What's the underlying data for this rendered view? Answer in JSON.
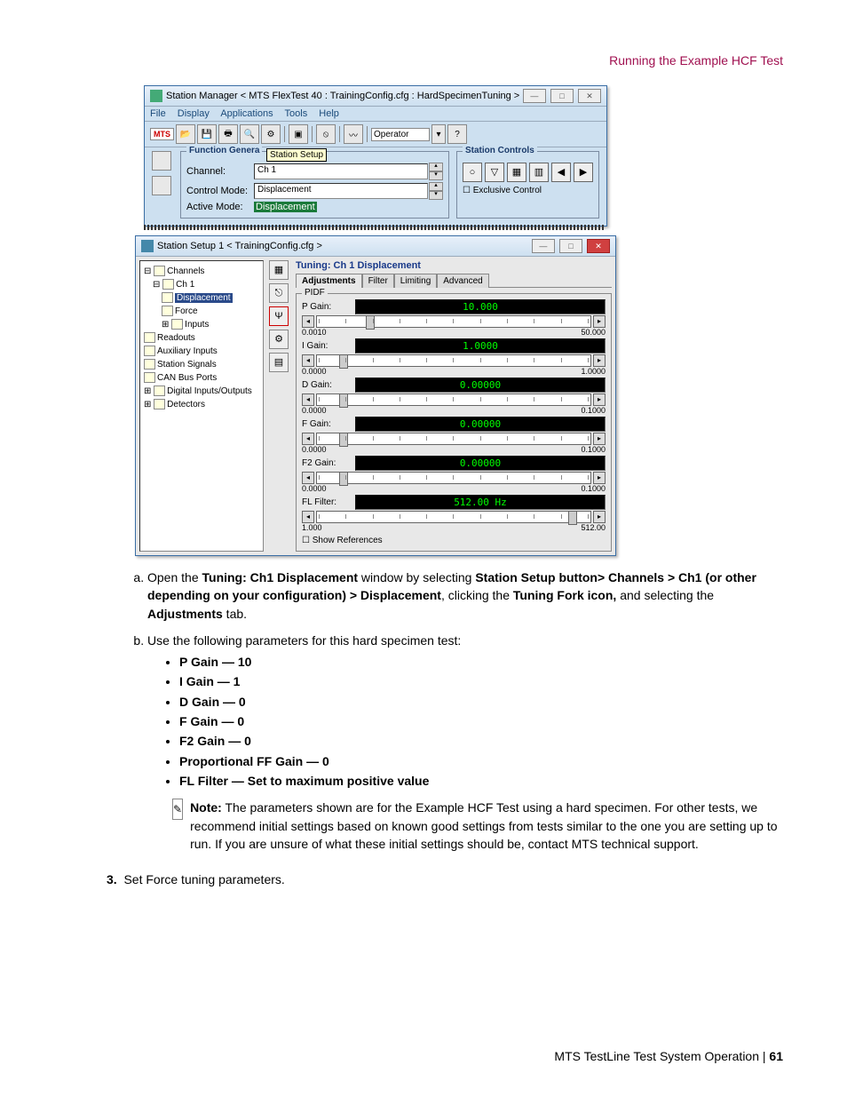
{
  "header": "Running the Example HCF Test",
  "window1": {
    "title": "Station Manager < MTS FlexTest 40 : TrainingConfig.cfg : HardSpecimenTuning >",
    "menu": [
      "File",
      "Display",
      "Applications",
      "Tools",
      "Help"
    ],
    "operator": "Operator",
    "funcgen": {
      "title": "Function Genera",
      "tooltip": "Station Setup",
      "channel_label": "Channel:",
      "channel": "Ch 1",
      "controlmode_label": "Control Mode:",
      "controlmode": "Displacement",
      "activemode_label": "Active Mode:",
      "activemode": "Displacement"
    },
    "stationctrl": {
      "title": "Station Controls",
      "exclusive": "Exclusive Control"
    }
  },
  "window2": {
    "title": "Station Setup 1 < TrainingConfig.cfg >",
    "tree": {
      "channels": "Channels",
      "ch1": "Ch 1",
      "displacement": "Displacement",
      "force": "Force",
      "inputs": "Inputs",
      "readouts": "Readouts",
      "aux": "Auxiliary Inputs",
      "station": "Station Signals",
      "can": "CAN Bus Ports",
      "digital": "Digital Inputs/Outputs",
      "detectors": "Detectors"
    },
    "tuning": {
      "title": "Tuning:  Ch 1 Displacement",
      "tabs": [
        "Adjustments",
        "Filter",
        "Limiting",
        "Advanced"
      ],
      "group": "PIDF",
      "gains": [
        {
          "name": "P Gain:",
          "value": "10.000",
          "min": "0.0010",
          "max": "50.000",
          "thumb": 18
        },
        {
          "name": "I Gain:",
          "value": "1.0000",
          "min": "0.0000",
          "max": "1.0000",
          "thumb": 8
        },
        {
          "name": "D Gain:",
          "value": "0.00000",
          "min": "0.0000",
          "max": "0.1000",
          "thumb": 8
        },
        {
          "name": "F Gain:",
          "value": "0.00000",
          "min": "0.0000",
          "max": "0.1000",
          "thumb": 8
        },
        {
          "name": "F2 Gain:",
          "value": "0.00000",
          "min": "0.0000",
          "max": "0.1000",
          "thumb": 8
        },
        {
          "name": "FL Filter:",
          "value": "512.00  Hz",
          "min": "1.000",
          "max": "512.00",
          "thumb": 92
        }
      ],
      "showref": "Show References"
    }
  },
  "instructions": {
    "a_pre": "Open the ",
    "a_b1": "Tuning: Ch1 Displacement",
    "a_mid1": " window by selecting ",
    "a_b2": "Station Setup button> Channels > Ch1 (or other depending on your configuration) > Displacement",
    "a_mid2": ", clicking the ",
    "a_b3": "Tuning Fork icon,",
    "a_mid3": " and selecting the ",
    "a_b4": "Adjustments",
    "a_end": " tab.",
    "b": "Use the following parameters for this hard specimen test:",
    "bullets": [
      {
        "b": "P Gain",
        "rest": " — 10"
      },
      {
        "b": "I Gain",
        "rest": " — 1"
      },
      {
        "b": "D Gain",
        "rest": " — 0"
      },
      {
        "b": "F Gain",
        "rest": " — 0"
      },
      {
        "b": "F2 Gain",
        "rest": " — 0"
      },
      {
        "b": "Proportional FF Gain",
        "rest": " — 0"
      },
      {
        "b": "FL Filter",
        "rest": " — Set to maximum positive value"
      }
    ],
    "note_label": "Note:",
    "note_text": " The parameters shown are for the Example HCF Test using a hard specimen. For other tests, we recommend initial settings based on known good settings from tests similar to the one you are setting up to run. If you are unsure of what these initial settings should be, contact MTS technical support.",
    "step3_num": "3.",
    "step3": "Set Force tuning parameters."
  },
  "footer": {
    "left": "MTS TestLine Test System Operation | ",
    "page": "61"
  }
}
